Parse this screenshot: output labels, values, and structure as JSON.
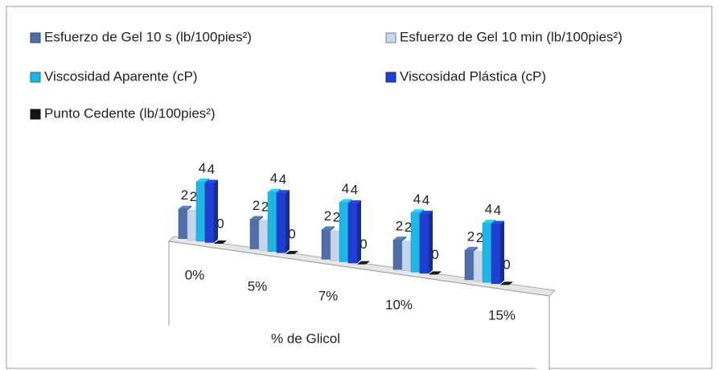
{
  "chart_data": {
    "type": "bar3d",
    "categories": [
      "0%",
      "5%",
      "7%",
      "10%",
      "15%"
    ],
    "x_label": "% de Glicol",
    "series": [
      {
        "name": "Esfuerzo de Gel 10 s (lb/100pies²)",
        "color": "#4f6fa8",
        "values": [
          2,
          2,
          2,
          2,
          2
        ]
      },
      {
        "name": "Esfuerzo de Gel 10 min (lb/100pies²)",
        "color": "#c9d5ea",
        "values": [
          2,
          2,
          2,
          2,
          2
        ]
      },
      {
        "name": "Viscosidad Aparente (cP)",
        "color": "#1fb6e3",
        "values": [
          4,
          4,
          4,
          4,
          4
        ]
      },
      {
        "name": "Viscosidad Plástica (cP)",
        "color": "#1f3fd2",
        "values": [
          4,
          4,
          4,
          4,
          4
        ]
      },
      {
        "name": "Punto Cedente (lb/100pies²)",
        "color": "#151515",
        "values": [
          0,
          0,
          0,
          0,
          0
        ]
      }
    ],
    "legend": "top"
  }
}
